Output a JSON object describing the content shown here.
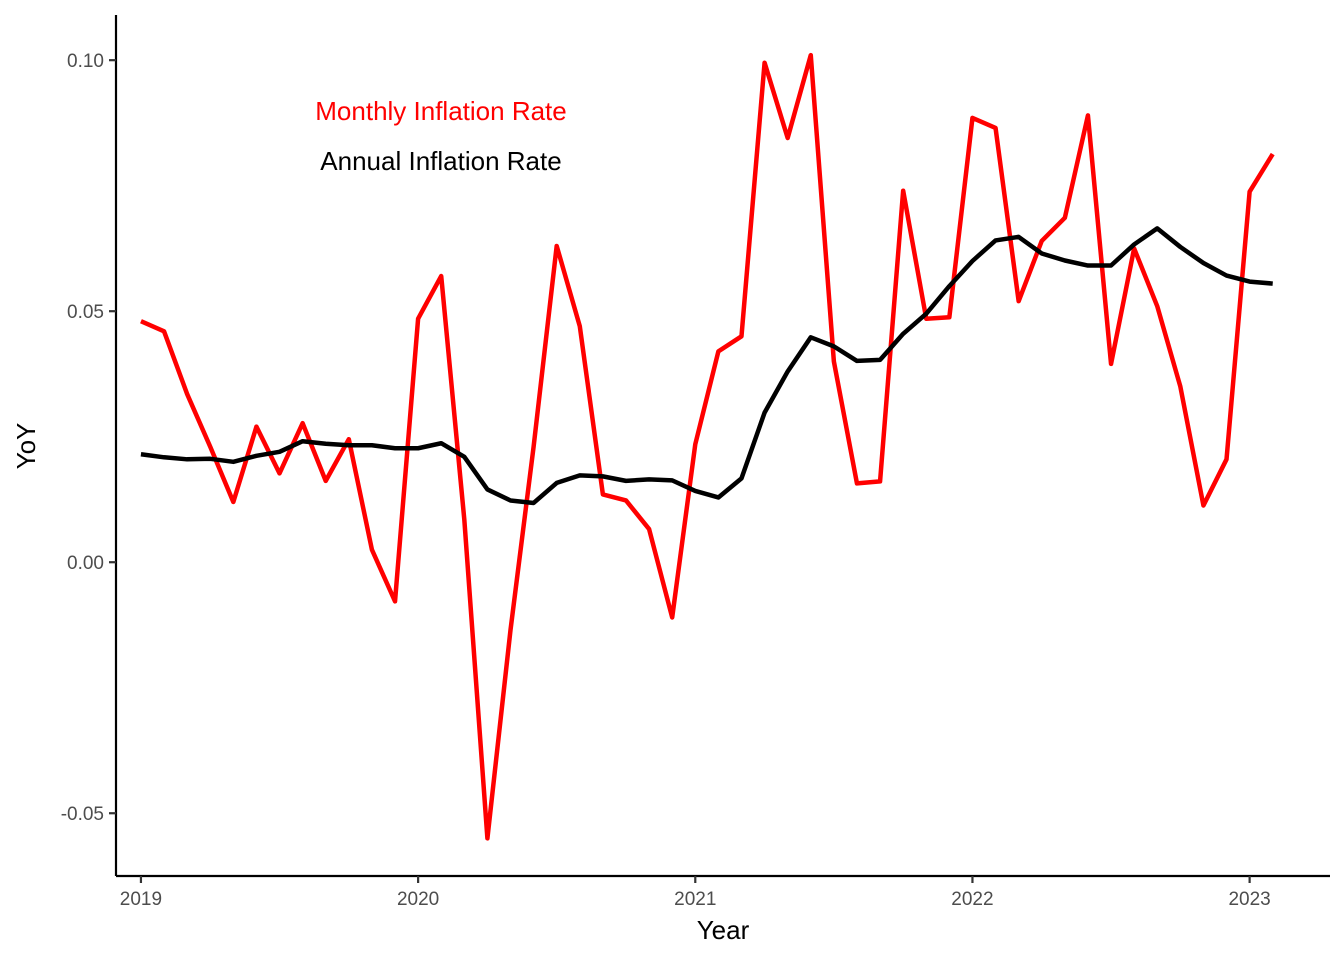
{
  "chart_data": {
    "type": "line",
    "title": "",
    "xlabel": "Year",
    "ylabel": "YoY",
    "xlim": [
      2018.91,
      2023.29
    ],
    "ylim": [
      -0.0625,
      0.109
    ],
    "x_ticks": [
      2019,
      2020,
      2021,
      2022,
      2023
    ],
    "x_tick_labels": [
      "2019",
      "2020",
      "2021",
      "2022",
      "2023"
    ],
    "y_ticks": [
      -0.05,
      0.0,
      0.05,
      0.1
    ],
    "y_tick_labels": [
      "-0.05",
      "0.00",
      "0.05",
      "0.10"
    ],
    "grid": false,
    "legend": "none",
    "annotations": [
      {
        "text": "Monthly Inflation Rate",
        "color": "#ff0000"
      },
      {
        "text": "Annual Inflation Rate",
        "color": "#000000"
      }
    ],
    "x_start": "2019-01",
    "x_frequency": "monthly",
    "series": [
      {
        "name": "Monthly Inflation Rate",
        "color": "#ff0000",
        "values": [
          0.048,
          0.046,
          0.0335,
          0.023,
          0.012,
          0.027,
          0.0177,
          0.0277,
          0.0162,
          0.0245,
          0.0025,
          -0.0078,
          0.0485,
          0.057,
          0.0085,
          -0.055,
          -0.0135,
          0.023,
          0.063,
          0.047,
          0.0135,
          0.0123,
          0.0066,
          -0.011,
          0.0235,
          0.042,
          0.045,
          0.0995,
          0.0845,
          0.101,
          0.04,
          0.0157,
          0.0161,
          0.074,
          0.0485,
          0.0488,
          0.0885,
          0.0865,
          0.052,
          0.064,
          0.0686,
          0.089,
          0.0395,
          0.0625,
          0.051,
          0.035,
          0.0113,
          0.0205,
          0.0738,
          0.0813
        ]
      },
      {
        "name": "Annual Inflation Rate",
        "color": "#000000",
        "values": [
          0.0215,
          0.0209,
          0.0205,
          0.0206,
          0.02,
          0.0212,
          0.022,
          0.0241,
          0.0236,
          0.0233,
          0.0233,
          0.0227,
          0.0227,
          0.0237,
          0.021,
          0.0145,
          0.0123,
          0.0118,
          0.0158,
          0.0173,
          0.0171,
          0.0162,
          0.0165,
          0.0163,
          0.0142,
          0.0129,
          0.0167,
          0.0298,
          0.038,
          0.0448,
          0.043,
          0.0401,
          0.0403,
          0.0455,
          0.0495,
          0.055,
          0.06,
          0.0641,
          0.0648,
          0.0615,
          0.0601,
          0.0591,
          0.0591,
          0.0633,
          0.0665,
          0.0628,
          0.0596,
          0.0571,
          0.0559,
          0.0555
        ]
      }
    ]
  }
}
